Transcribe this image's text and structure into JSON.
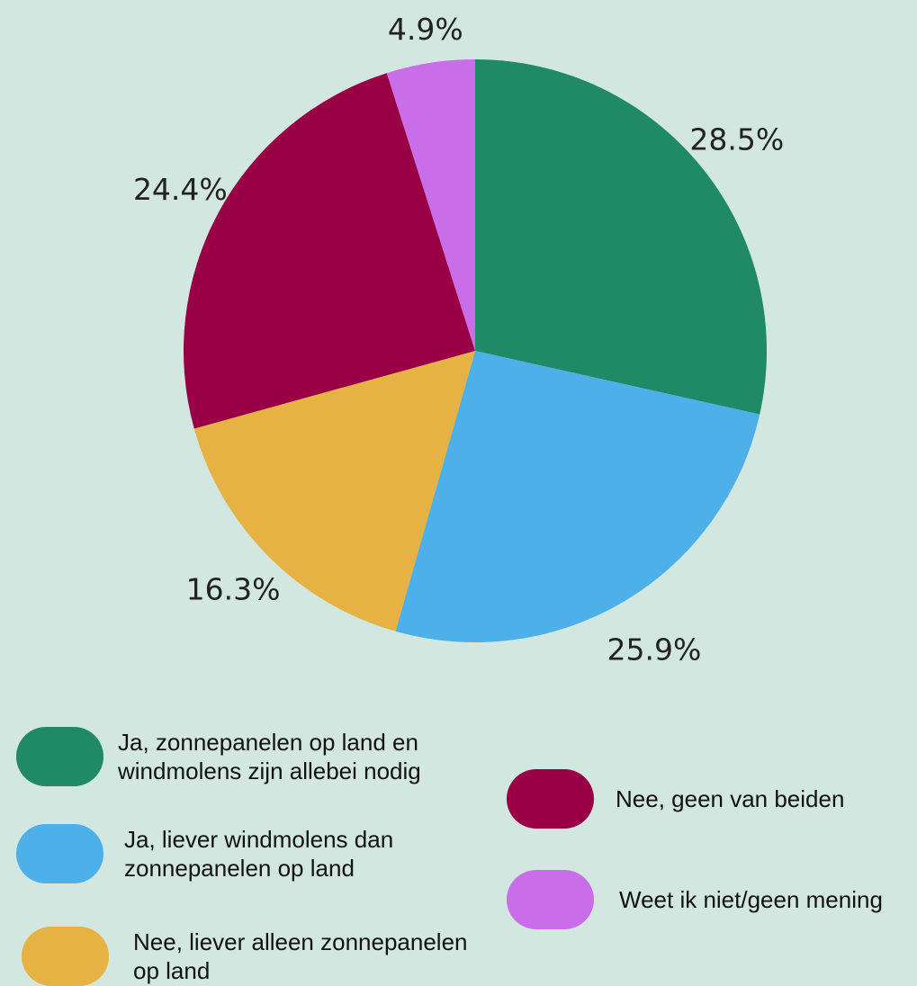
{
  "chart_data": {
    "type": "pie",
    "categories": [
      "Ja, zonnepanelen op land en windmolens zijn allebei nodig",
      "Ja, liever windmolens dan zonnepanelen op land",
      "Nee, liever alleen zonnepanelen op land",
      "Nee, geen van beiden",
      "Weet ik niet/geen mening"
    ],
    "values": [
      28.5,
      25.9,
      16.3,
      24.4,
      4.9
    ],
    "value_labels": [
      "28.5%",
      "25.9%",
      "16.3%",
      "24.4%",
      "4.9%"
    ],
    "colors": [
      "#1f8a65",
      "#4db0e8",
      "#e5b243",
      "#990045",
      "#c96de8"
    ]
  }
}
